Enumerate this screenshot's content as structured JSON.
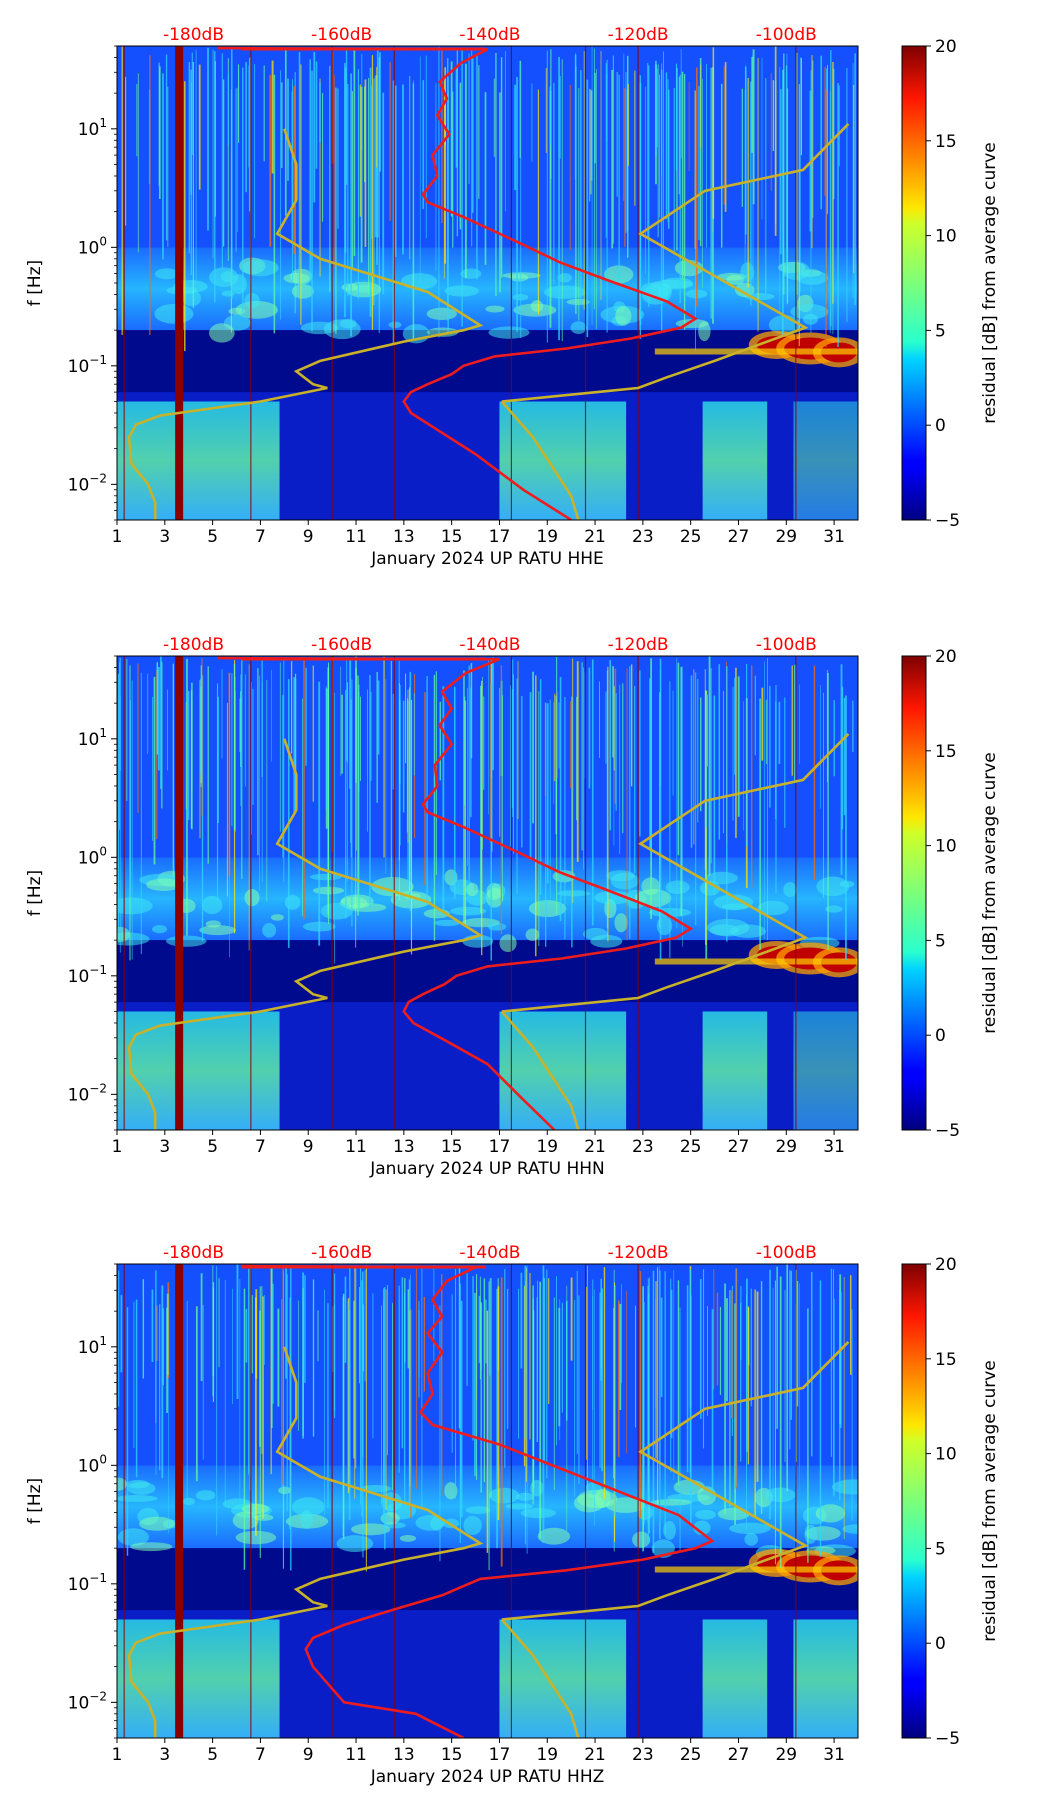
{
  "chart_data": {
    "type": "heatmap",
    "shared": {
      "x_range": [
        1,
        32
      ],
      "x_ticks": [
        1,
        3,
        5,
        7,
        9,
        11,
        13,
        15,
        17,
        19,
        21,
        23,
        25,
        27,
        29,
        31
      ],
      "x_tick_labels": [
        "1",
        "3",
        "5",
        "7",
        "9",
        "11",
        "13",
        "15",
        "17",
        "19",
        "21",
        "23",
        "25",
        "27",
        "29",
        "31"
      ],
      "ylabel": "f [Hz]",
      "y_scale": "log",
      "y_range_hz": [
        0.005,
        50
      ],
      "y_ticks": [
        0.01,
        0.1,
        1,
        10
      ],
      "y_tick_labels_base": [
        "10",
        "10",
        "10",
        "10"
      ],
      "y_tick_labels_exp": [
        "−2",
        "−1",
        "0",
        "1"
      ],
      "top_ticks_x": [
        4.2,
        10.4,
        16.6,
        22.8,
        29.0
      ],
      "top_tick_labels": [
        "-180dB",
        "-160dB",
        "-140dB",
        "-120dB",
        "-100dB"
      ],
      "top_tick_color": "#ff0000",
      "colorbar": {
        "label": "residual [dB] from average curve",
        "range": [
          -5,
          20
        ],
        "ticks": [
          -5,
          0,
          5,
          10,
          15,
          20
        ],
        "tick_labels": [
          "−5",
          "0",
          "5",
          "10",
          "15",
          "20"
        ],
        "colormap": "jet"
      },
      "curve_colors": {
        "red": "#ee1c1c",
        "yellow": "#c9b22a"
      }
    },
    "panels": [
      {
        "xlabel": "January 2024 UP RATU  HHE",
        "dark_column_x": 3.6,
        "yellow_curve_left": [
          [
            8,
            10
          ],
          [
            8.5,
            5
          ],
          [
            8.5,
            2.5
          ],
          [
            7.7,
            1.3
          ],
          [
            9.5,
            0.8
          ],
          [
            14,
            0.42
          ],
          [
            16.2,
            0.22
          ],
          [
            15.5,
            0.2
          ],
          [
            13,
            0.16
          ],
          [
            9.5,
            0.11
          ],
          [
            8.5,
            0.09
          ],
          [
            9.2,
            0.07
          ],
          [
            9.8,
            0.065
          ],
          [
            7,
            0.05
          ],
          [
            2.8,
            0.038
          ],
          [
            1.8,
            0.032
          ],
          [
            1.5,
            0.025
          ],
          [
            1.6,
            0.015
          ],
          [
            2.3,
            0.01
          ],
          [
            2.6,
            0.007
          ],
          [
            2.6,
            0.005
          ]
        ],
        "yellow_curve_right": [
          [
            17.1,
            0.05
          ],
          [
            22.8,
            0.065
          ],
          [
            24,
            0.08
          ],
          [
            26,
            0.11
          ],
          [
            29.8,
            0.21
          ],
          [
            22.9,
            1.3
          ],
          [
            25.6,
            3
          ],
          [
            29.7,
            4.5
          ],
          [
            31.6,
            11
          ]
        ],
        "yellow_curve_tail": [
          [
            17.1,
            0.05
          ],
          [
            18.4,
            0.025
          ],
          [
            20,
            0.008
          ],
          [
            20.3,
            0.005
          ]
        ],
        "red_curve": [
          [
            5.2,
            48
          ],
          [
            16.5,
            47
          ],
          [
            15.4,
            36
          ],
          [
            14.5,
            25
          ],
          [
            14.8,
            18
          ],
          [
            14.4,
            13
          ],
          [
            14.9,
            9
          ],
          [
            14.2,
            6
          ],
          [
            14.4,
            4
          ],
          [
            13.8,
            2.8
          ],
          [
            14,
            2.4
          ],
          [
            15.5,
            1.8
          ],
          [
            18,
            1.05
          ],
          [
            19.5,
            0.75
          ],
          [
            21.5,
            0.53
          ],
          [
            24,
            0.35
          ],
          [
            25.2,
            0.25
          ],
          [
            24.6,
            0.21
          ],
          [
            22.5,
            0.17
          ],
          [
            19.8,
            0.14
          ],
          [
            16.8,
            0.12
          ],
          [
            15.5,
            0.1
          ],
          [
            15,
            0.085
          ],
          [
            14,
            0.07
          ],
          [
            13.3,
            0.06
          ],
          [
            13,
            0.05
          ],
          [
            13.3,
            0.04
          ],
          [
            14.5,
            0.028
          ],
          [
            16,
            0.018
          ],
          [
            18,
            0.009
          ],
          [
            20,
            0.005
          ]
        ]
      },
      {
        "xlabel": "January 2024 UP RATU  HHN",
        "dark_column_x": 3.6,
        "yellow_curve_left": [
          [
            8,
            10
          ],
          [
            8.5,
            5
          ],
          [
            8.5,
            2.5
          ],
          [
            7.7,
            1.3
          ],
          [
            9.5,
            0.8
          ],
          [
            14,
            0.42
          ],
          [
            16.2,
            0.22
          ],
          [
            15.5,
            0.2
          ],
          [
            13,
            0.16
          ],
          [
            9.5,
            0.11
          ],
          [
            8.5,
            0.09
          ],
          [
            9.2,
            0.07
          ],
          [
            9.8,
            0.065
          ],
          [
            7,
            0.05
          ],
          [
            2.8,
            0.038
          ],
          [
            1.8,
            0.032
          ],
          [
            1.5,
            0.025
          ],
          [
            1.6,
            0.015
          ],
          [
            2.3,
            0.01
          ],
          [
            2.6,
            0.007
          ],
          [
            2.6,
            0.005
          ]
        ],
        "yellow_curve_right": [
          [
            17.1,
            0.05
          ],
          [
            22.8,
            0.065
          ],
          [
            24,
            0.08
          ],
          [
            26,
            0.11
          ],
          [
            29.8,
            0.21
          ],
          [
            22.9,
            1.3
          ],
          [
            25.6,
            3
          ],
          [
            29.7,
            4.5
          ],
          [
            31.6,
            11
          ]
        ],
        "yellow_curve_tail": [
          [
            17.1,
            0.05
          ],
          [
            18.4,
            0.025
          ],
          [
            20,
            0.008
          ],
          [
            20.3,
            0.005
          ]
        ],
        "red_curve": [
          [
            5.2,
            48
          ],
          [
            17,
            47
          ],
          [
            15.6,
            36
          ],
          [
            14.6,
            25
          ],
          [
            15,
            18
          ],
          [
            14.5,
            13
          ],
          [
            15,
            9
          ],
          [
            14.3,
            6
          ],
          [
            14.4,
            4
          ],
          [
            13.8,
            2.8
          ],
          [
            14,
            2.4
          ],
          [
            15.5,
            1.8
          ],
          [
            18,
            1.05
          ],
          [
            19.5,
            0.75
          ],
          [
            21.5,
            0.53
          ],
          [
            23.8,
            0.35
          ],
          [
            25,
            0.25
          ],
          [
            24.4,
            0.21
          ],
          [
            22.3,
            0.17
          ],
          [
            19.6,
            0.14
          ],
          [
            16.5,
            0.12
          ],
          [
            15.2,
            0.1
          ],
          [
            14.7,
            0.085
          ],
          [
            13.8,
            0.07
          ],
          [
            13.2,
            0.06
          ],
          [
            13,
            0.05
          ],
          [
            13.4,
            0.04
          ],
          [
            14.8,
            0.028
          ],
          [
            16.5,
            0.018
          ],
          [
            18,
            0.009
          ],
          [
            19.3,
            0.005
          ]
        ]
      },
      {
        "xlabel": "January 2024 UP RATU  HHZ",
        "dark_column_x": 3.6,
        "yellow_curve_left": [
          [
            8,
            10
          ],
          [
            8.5,
            5
          ],
          [
            8.5,
            2.5
          ],
          [
            7.7,
            1.3
          ],
          [
            9.5,
            0.8
          ],
          [
            14,
            0.42
          ],
          [
            16.2,
            0.22
          ],
          [
            15.5,
            0.2
          ],
          [
            13,
            0.16
          ],
          [
            9.5,
            0.11
          ],
          [
            8.5,
            0.09
          ],
          [
            9.2,
            0.07
          ],
          [
            9.8,
            0.065
          ],
          [
            7,
            0.05
          ],
          [
            2.8,
            0.038
          ],
          [
            1.8,
            0.032
          ],
          [
            1.5,
            0.025
          ],
          [
            1.6,
            0.015
          ],
          [
            2.3,
            0.01
          ],
          [
            2.6,
            0.007
          ],
          [
            2.6,
            0.005
          ]
        ],
        "yellow_curve_right": [
          [
            17.1,
            0.05
          ],
          [
            22.8,
            0.065
          ],
          [
            24,
            0.08
          ],
          [
            26,
            0.11
          ],
          [
            29.8,
            0.21
          ],
          [
            22.9,
            1.3
          ],
          [
            25.6,
            3
          ],
          [
            29.7,
            4.5
          ],
          [
            31.6,
            11
          ]
        ],
        "yellow_curve_tail": [
          [
            17.1,
            0.05
          ],
          [
            18.4,
            0.025
          ],
          [
            20,
            0.008
          ],
          [
            20.3,
            0.005
          ]
        ],
        "red_curve": [
          [
            6.2,
            48
          ],
          [
            16,
            47
          ],
          [
            14.8,
            36
          ],
          [
            14.2,
            25
          ],
          [
            14.6,
            18
          ],
          [
            14,
            13
          ],
          [
            14.6,
            9
          ],
          [
            14,
            6
          ],
          [
            14.2,
            4
          ],
          [
            13.7,
            2.8
          ],
          [
            14.2,
            2.2
          ],
          [
            17,
            1.5
          ],
          [
            19.5,
            0.95
          ],
          [
            22,
            0.6
          ],
          [
            24.5,
            0.38
          ],
          [
            25.9,
            0.23
          ],
          [
            25.2,
            0.2
          ],
          [
            23,
            0.16
          ],
          [
            19.8,
            0.13
          ],
          [
            16.2,
            0.11
          ],
          [
            14.6,
            0.08
          ],
          [
            12.5,
            0.06
          ],
          [
            10.5,
            0.045
          ],
          [
            9.2,
            0.035
          ],
          [
            8.9,
            0.028
          ],
          [
            9.2,
            0.02
          ],
          [
            10.5,
            0.01
          ],
          [
            13.5,
            0.008
          ],
          [
            15.5,
            0.005
          ]
        ]
      }
    ]
  }
}
